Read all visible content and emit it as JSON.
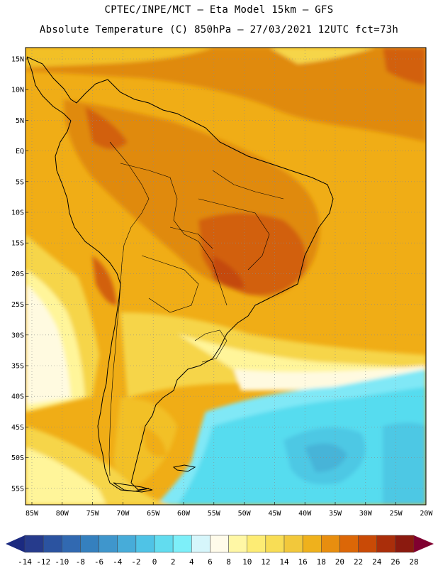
{
  "header": {
    "line1": "CPTEC/INPE/MCT –  Eta Model 15km – GFS",
    "line2": "Absolute Temperature (C) 850hPa – 27/03/2021 12UTC fct=73h"
  },
  "map": {
    "lat_labels": [
      "15N",
      "10N",
      "5N",
      "EQ",
      "5S",
      "10S",
      "15S",
      "20S",
      "25S",
      "30S",
      "35S",
      "40S",
      "45S",
      "50S",
      "55S"
    ],
    "lon_labels": [
      "85W",
      "80W",
      "75W",
      "70W",
      "65W",
      "60W",
      "55W",
      "50W",
      "45W",
      "40W",
      "35W",
      "30W",
      "25W",
      "20W"
    ],
    "field_palette": {
      "t8": "#fffae0",
      "t10": "#fff59a",
      "t12": "#fbe86b",
      "t14": "#f6d548",
      "t16": "#f2c028",
      "t18": "#f0ad16",
      "t20": "#e08a0c",
      "t22": "#d2600a",
      "t24": "#c44808",
      "c6": "#d4f4fb",
      "c4": "#80e8f6",
      "c2": "#56dcef",
      "c0": "#4ec8e4",
      "cm2": "#46b4d8"
    }
  },
  "colorbar": {
    "labels": [
      "-14",
      "-12",
      "-10",
      "-8",
      "-6",
      "-4",
      "-2",
      "0",
      "2",
      "4",
      "6",
      "8",
      "10",
      "12",
      "14",
      "16",
      "18",
      "20",
      "22",
      "24",
      "26",
      "28"
    ],
    "under_color": "#1b2a80",
    "over_color": "#800030",
    "colors": [
      "#263b8c",
      "#2b53a0",
      "#3169b1",
      "#3580be",
      "#3f96cc",
      "#47acd9",
      "#4fc3e6",
      "#62dcef",
      "#7deff9",
      "#d6f6fb",
      "#fffbea",
      "#fff7a5",
      "#fdec74",
      "#f8dd55",
      "#f2c83b",
      "#efb11c",
      "#e88e0f",
      "#dc6707",
      "#c94a06",
      "#aa2e0a",
      "#8b1a0f"
    ]
  }
}
